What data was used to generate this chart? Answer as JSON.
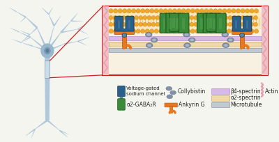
{
  "bg_color": "#f5f5f0",
  "neuron_color": "#b0c8dc",
  "soma_color": "#9ab8cc",
  "axon_highlight_color": "#d0e0ee",
  "blue_channel_color": "#2a5f8a",
  "blue_channel_dark": "#1a3f5a",
  "blue_channel_light": "#4a7faa",
  "green_receptor_color": "#3a8a3a",
  "green_receptor_dark": "#1a5a1a",
  "green_receptor_light": "#5aaa5a",
  "ankyrin_color": "#e87820",
  "ankyrin_dark": "#b05010",
  "collybistin_color": "#8090a8",
  "collybistin_light": "#a8b8c8",
  "b4_spectrin_color": "#d8b8e8",
  "b4_spectrin_edge": "#b890cc",
  "a2_spectrin_color": "#f0d8a8",
  "a2_spectrin_edge": "#c8a870",
  "microtubule_color": "#c0c8d0",
  "microtubule_edge": "#909aaa",
  "actin_color": "#e8a0a8",
  "box_border_color": "#cc2020",
  "orange_bead_color": "#f0a828",
  "orange_bead_dark": "#d08010",
  "membrane_fill": "#f8e8c0",
  "pink_sides_color": "#f0c0c8",
  "panel_bg": "#f8f0e0",
  "legend_items": {
    "voltage_gated": "Voltage-gated\nsodium channel",
    "collybistin": "Collybistin",
    "b4_spectrin": "β4-spectrin",
    "actin": "Actin",
    "a2_gabar": "α2-GABA₂R",
    "ankyrin_g": "Ankyrin G",
    "a2_spectrin": "α2-spectrin",
    "microtubule": "Microtubule"
  }
}
